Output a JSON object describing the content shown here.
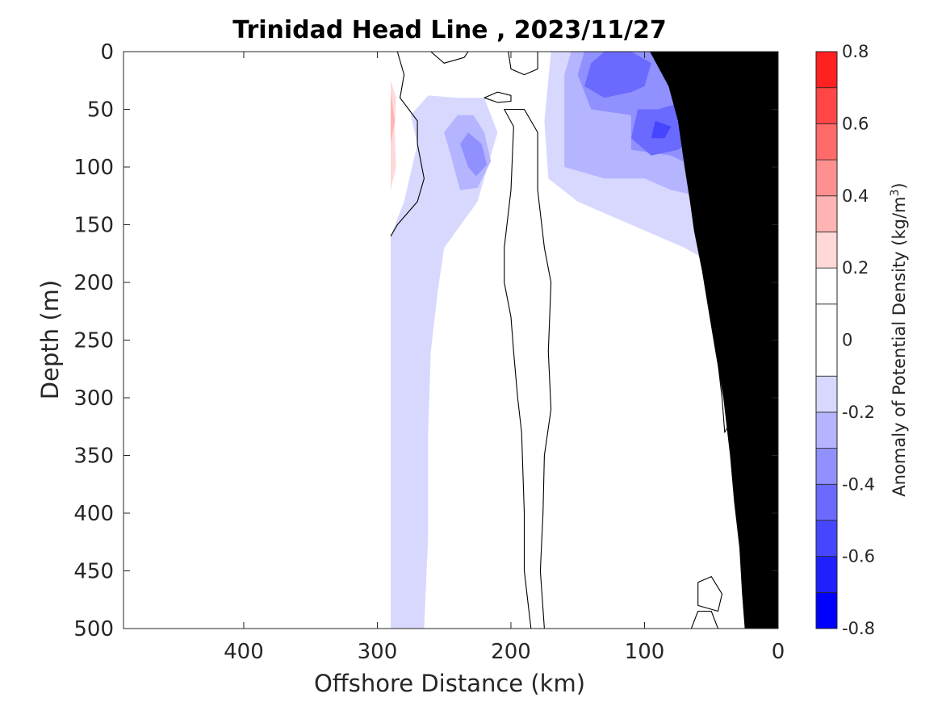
{
  "chart_data": {
    "type": "contour",
    "title": "Trinidad Head Line , 2023/11/27",
    "xlabel": "Offshore Distance (km)",
    "ylabel": "Depth (m)",
    "xlim": [
      490,
      0
    ],
    "ylim": [
      0,
      500
    ],
    "x_ticks": [
      400,
      300,
      200,
      100,
      0
    ],
    "x_tick_labels": [
      "400",
      "300",
      "200",
      "100",
      "0"
    ],
    "y_ticks": [
      0,
      50,
      100,
      150,
      200,
      250,
      300,
      350,
      400,
      450,
      500
    ],
    "y_tick_labels": [
      "0",
      "50",
      "100",
      "150",
      "200",
      "250",
      "300",
      "350",
      "400",
      "450",
      "500"
    ],
    "colorbar": {
      "label_prefix": "Anomaly of Potential Density (kg/m",
      "label_sup": "3",
      "label_suffix": ")",
      "range": [
        -0.8,
        0.8
      ],
      "tick_values": [
        0.8,
        0.6,
        0.4,
        0.2,
        0,
        -0.2,
        -0.4,
        -0.6,
        -0.8
      ],
      "tick_labels": [
        "0.8",
        "0.6",
        "0.4",
        "0.2",
        "0",
        "-0.2",
        "-0.4",
        "-0.6",
        "-0.8"
      ],
      "levels": [
        -0.8,
        -0.7,
        -0.6,
        -0.5,
        -0.4,
        -0.3,
        -0.2,
        -0.1,
        0.1,
        0.2,
        0.3,
        0.4,
        0.5,
        0.6,
        0.7,
        0.8
      ],
      "colors": [
        "#0000ff",
        "#2020ff",
        "#4646ff",
        "#6a6aff",
        "#9090ff",
        "#b4b4ff",
        "#d8d8ff",
        "#ffffff",
        "#ffffff",
        "#ffd8d8",
        "#ffb4b4",
        "#ff9090",
        "#ff6a6a",
        "#ff4646",
        "#ff2020",
        "#ff0000"
      ]
    },
    "regions": [
      {
        "name": "negative-anomaly-offshore-band",
        "anomaly": -0.15,
        "points": [
          [
            290,
            220
          ],
          [
            290,
            160
          ],
          [
            280,
            130
          ],
          [
            270,
            80
          ],
          [
            275,
            55
          ],
          [
            262,
            38
          ],
          [
            240,
            40
          ],
          [
            220,
            40
          ],
          [
            210,
            70
          ],
          [
            225,
            130
          ],
          [
            250,
            170
          ],
          [
            255,
            210
          ],
          [
            260,
            260
          ],
          [
            262,
            330
          ],
          [
            262,
            420
          ],
          [
            265,
            500
          ],
          [
            290,
            500
          ]
        ]
      },
      {
        "name": "negative-anomaly-eddy",
        "anomaly": -0.3,
        "points": [
          [
            245,
            90
          ],
          [
            250,
            70
          ],
          [
            240,
            55
          ],
          [
            228,
            55
          ],
          [
            220,
            70
          ],
          [
            215,
            95
          ],
          [
            225,
            118
          ],
          [
            238,
            120
          ]
        ]
      },
      {
        "name": "negative-anomaly-eddy-core",
        "anomaly": -0.4,
        "points": [
          [
            238,
            80
          ],
          [
            232,
            70
          ],
          [
            222,
            80
          ],
          [
            218,
            98
          ],
          [
            226,
            108
          ],
          [
            232,
            100
          ]
        ]
      },
      {
        "name": "negative-anomaly-shelf-outer",
        "anomaly": -0.15,
        "points": [
          [
            170,
            0
          ],
          [
            175,
            60
          ],
          [
            172,
            110
          ],
          [
            150,
            130
          ],
          [
            110,
            150
          ],
          [
            70,
            170
          ],
          [
            40,
            190
          ],
          [
            20,
            200
          ],
          [
            10,
            230
          ],
          [
            5,
            250
          ],
          [
            5,
            40
          ],
          [
            10,
            0
          ]
        ]
      },
      {
        "name": "negative-anomaly-shelf-mid",
        "anomaly": -0.25,
        "points": [
          [
            155,
            0
          ],
          [
            160,
            20
          ],
          [
            160,
            60
          ],
          [
            160,
            100
          ],
          [
            130,
            110
          ],
          [
            100,
            110
          ],
          [
            80,
            120
          ],
          [
            40,
            130
          ],
          [
            30,
            140
          ],
          [
            10,
            100
          ],
          [
            10,
            0
          ]
        ]
      },
      {
        "name": "negative-anomaly-shelf-inner",
        "anomaly": -0.35,
        "points": [
          [
            145,
            0
          ],
          [
            150,
            20
          ],
          [
            140,
            50
          ],
          [
            110,
            55
          ],
          [
            110,
            85
          ],
          [
            80,
            90
          ],
          [
            45,
            110
          ],
          [
            40,
            115
          ],
          [
            25,
            80
          ],
          [
            25,
            50
          ],
          [
            10,
            40
          ],
          [
            10,
            0
          ]
        ]
      },
      {
        "name": "negative-anomaly-shelf-core-a",
        "anomaly": -0.45,
        "points": [
          [
            140,
            10
          ],
          [
            145,
            30
          ],
          [
            130,
            40
          ],
          [
            110,
            35
          ],
          [
            100,
            30
          ],
          [
            95,
            10
          ],
          [
            110,
            0
          ],
          [
            130,
            0
          ]
        ]
      },
      {
        "name": "negative-anomaly-shelf-core-b",
        "anomaly": -0.45,
        "points": [
          [
            105,
            50
          ],
          [
            110,
            75
          ],
          [
            95,
            90
          ],
          [
            75,
            85
          ],
          [
            60,
            75
          ],
          [
            55,
            50
          ],
          [
            75,
            45
          ],
          [
            90,
            50
          ]
        ]
      },
      {
        "name": "negative-anomaly-shelf-core-c",
        "anomaly": -0.45,
        "points": [
          [
            65,
            0
          ],
          [
            70,
            20
          ],
          [
            55,
            30
          ],
          [
            35,
            30
          ],
          [
            20,
            15
          ],
          [
            25,
            0
          ]
        ]
      },
      {
        "name": "negative-anomaly-shelf-core-d",
        "anomaly": -0.55,
        "points": [
          [
            55,
            0
          ],
          [
            58,
            15
          ],
          [
            45,
            22
          ],
          [
            35,
            15
          ],
          [
            35,
            0
          ]
        ]
      },
      {
        "name": "negative-anomaly-shelf-core-e",
        "anomaly": -0.55,
        "points": [
          [
            92,
            60
          ],
          [
            95,
            75
          ],
          [
            85,
            75
          ],
          [
            80,
            65
          ]
        ]
      },
      {
        "name": "positive-anomaly-offshore",
        "anomaly": 0.15,
        "points": [
          [
            290,
            0
          ],
          [
            290,
            140
          ],
          [
            283,
            130
          ],
          [
            282,
            100
          ],
          [
            285,
            70
          ],
          [
            283,
            40
          ],
          [
            286,
            20
          ]
        ]
      },
      {
        "name": "positive-anomaly-offshore-mid",
        "anomaly": 0.25,
        "points": [
          [
            290,
            25
          ],
          [
            290,
            120
          ],
          [
            286,
            100
          ],
          [
            287,
            70
          ],
          [
            286,
            40
          ]
        ]
      },
      {
        "name": "positive-anomaly-offshore-core",
        "anomaly": 0.35,
        "points": [
          [
            290,
            35
          ],
          [
            290,
            80
          ],
          [
            287,
            60
          ]
        ]
      }
    ],
    "contours": [
      {
        "name": "zero-contour-offshore",
        "closed": false,
        "points": [
          [
            290,
            160
          ],
          [
            285,
            150
          ],
          [
            270,
            130
          ],
          [
            265,
            110
          ],
          [
            270,
            80
          ],
          [
            270,
            60
          ],
          [
            283,
            40
          ],
          [
            280,
            20
          ],
          [
            285,
            0
          ]
        ]
      },
      {
        "name": "zero-contour-central",
        "closed": true,
        "points": [
          [
            205,
            50
          ],
          [
            198,
            65
          ],
          [
            200,
            120
          ],
          [
            205,
            170
          ],
          [
            205,
            200
          ],
          [
            200,
            230
          ],
          [
            198,
            260
          ],
          [
            195,
            300
          ],
          [
            192,
            330
          ],
          [
            190,
            400
          ],
          [
            190,
            450
          ],
          [
            185,
            500
          ],
          [
            175,
            500
          ],
          [
            178,
            450
          ],
          [
            176,
            400
          ],
          [
            175,
            350
          ],
          [
            170,
            310
          ],
          [
            172,
            260
          ],
          [
            170,
            200
          ],
          [
            175,
            170
          ],
          [
            180,
            120
          ],
          [
            180,
            70
          ],
          [
            190,
            50
          ]
        ]
      },
      {
        "name": "zero-contour-top",
        "closed": false,
        "points": [
          [
            260,
            0
          ],
          [
            250,
            10
          ],
          [
            235,
            5
          ],
          [
            232,
            0
          ]
        ]
      },
      {
        "name": "zero-contour-top-right",
        "closed": false,
        "points": [
          [
            202,
            0
          ],
          [
            200,
            15
          ],
          [
            190,
            20
          ],
          [
            180,
            15
          ],
          [
            180,
            0
          ]
        ]
      },
      {
        "name": "zero-contour-small-loop",
        "closed": true,
        "points": [
          [
            220,
            40
          ],
          [
            210,
            35
          ],
          [
            200,
            38
          ],
          [
            200,
            43
          ],
          [
            210,
            44
          ]
        ]
      },
      {
        "name": "zero-contour-tiny-loop",
        "closed": true,
        "points": [
          [
            38,
            248
          ],
          [
            42,
            251
          ],
          [
            38,
            254
          ],
          [
            36,
            251
          ]
        ]
      },
      {
        "name": "zero-contour-deep-loop",
        "closed": true,
        "points": [
          [
            45,
            270
          ],
          [
            35,
            265
          ],
          [
            30,
            285
          ],
          [
            30,
            310
          ],
          [
            35,
            320
          ],
          [
            40,
            330
          ],
          [
            42,
            300
          ]
        ]
      },
      {
        "name": "zero-contour-slope",
        "closed": false,
        "points": [
          [
            25,
            350
          ],
          [
            22,
            370
          ],
          [
            23,
            400
          ],
          [
            22,
            420
          ]
        ]
      },
      {
        "name": "zero-contour-bottom-loop-a",
        "closed": true,
        "points": [
          [
            60,
            460
          ],
          [
            50,
            455
          ],
          [
            42,
            470
          ],
          [
            45,
            485
          ],
          [
            60,
            480
          ]
        ]
      },
      {
        "name": "zero-contour-bottom-loop-b",
        "closed": false,
        "points": [
          [
            65,
            500
          ],
          [
            60,
            485
          ],
          [
            50,
            485
          ],
          [
            45,
            500
          ]
        ]
      }
    ],
    "bathymetry": [
      [
        0,
        0
      ],
      [
        0,
        500
      ],
      [
        25,
        500
      ],
      [
        27,
        470
      ],
      [
        29,
        430
      ],
      [
        33,
        390
      ],
      [
        36,
        350
      ],
      [
        41,
        300
      ],
      [
        47,
        260
      ],
      [
        52,
        225
      ],
      [
        57,
        190
      ],
      [
        63,
        155
      ],
      [
        66,
        130
      ],
      [
        70,
        100
      ],
      [
        75,
        60
      ],
      [
        82,
        30
      ],
      [
        96,
        0
      ]
    ]
  }
}
